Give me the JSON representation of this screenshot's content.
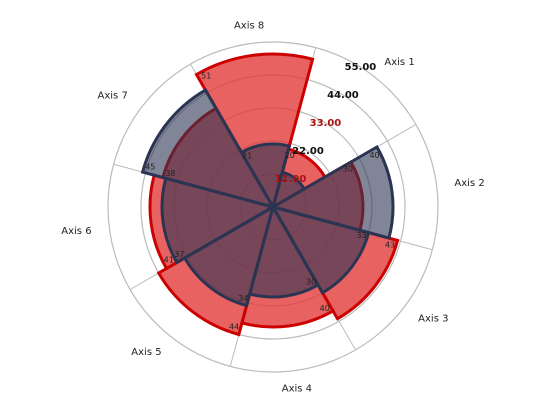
{
  "chart_data": {
    "type": "polar-area",
    "title": "",
    "categories": [
      "Axis 1",
      "Axis 2",
      "Axis 3",
      "Axis 4",
      "Axis 5",
      "Axis 6",
      "Axis 7",
      "Axis 8"
    ],
    "series": [
      {
        "values": [
          20,
          30,
          43,
          40,
          44,
          41,
          38,
          51
        ],
        "color": "#e23b3b"
      },
      {
        "values": [
          12,
          40,
          33,
          30,
          34,
          37,
          45,
          21
        ],
        "color": "#2b3553"
      }
    ],
    "radial_ticks": [
      {
        "value": 11.0,
        "label": "11.00"
      },
      {
        "value": 22.0,
        "label": "22.00"
      },
      {
        "value": 33.0,
        "label": "33.00"
      },
      {
        "value": 44.0,
        "label": "44.00"
      },
      {
        "value": 55.0,
        "label": "55.00"
      }
    ],
    "rlim": [
      0,
      55
    ],
    "grid": true,
    "colors": {
      "red_fill": "#e23b3b",
      "red_stroke": "#cc0000",
      "navy_fill": "#2b3553",
      "navy_stroke": "#2b3553",
      "grid": "#bbbbbb",
      "tick_text_series1": "#aa1111",
      "tick_text_dark": "#111111"
    }
  }
}
